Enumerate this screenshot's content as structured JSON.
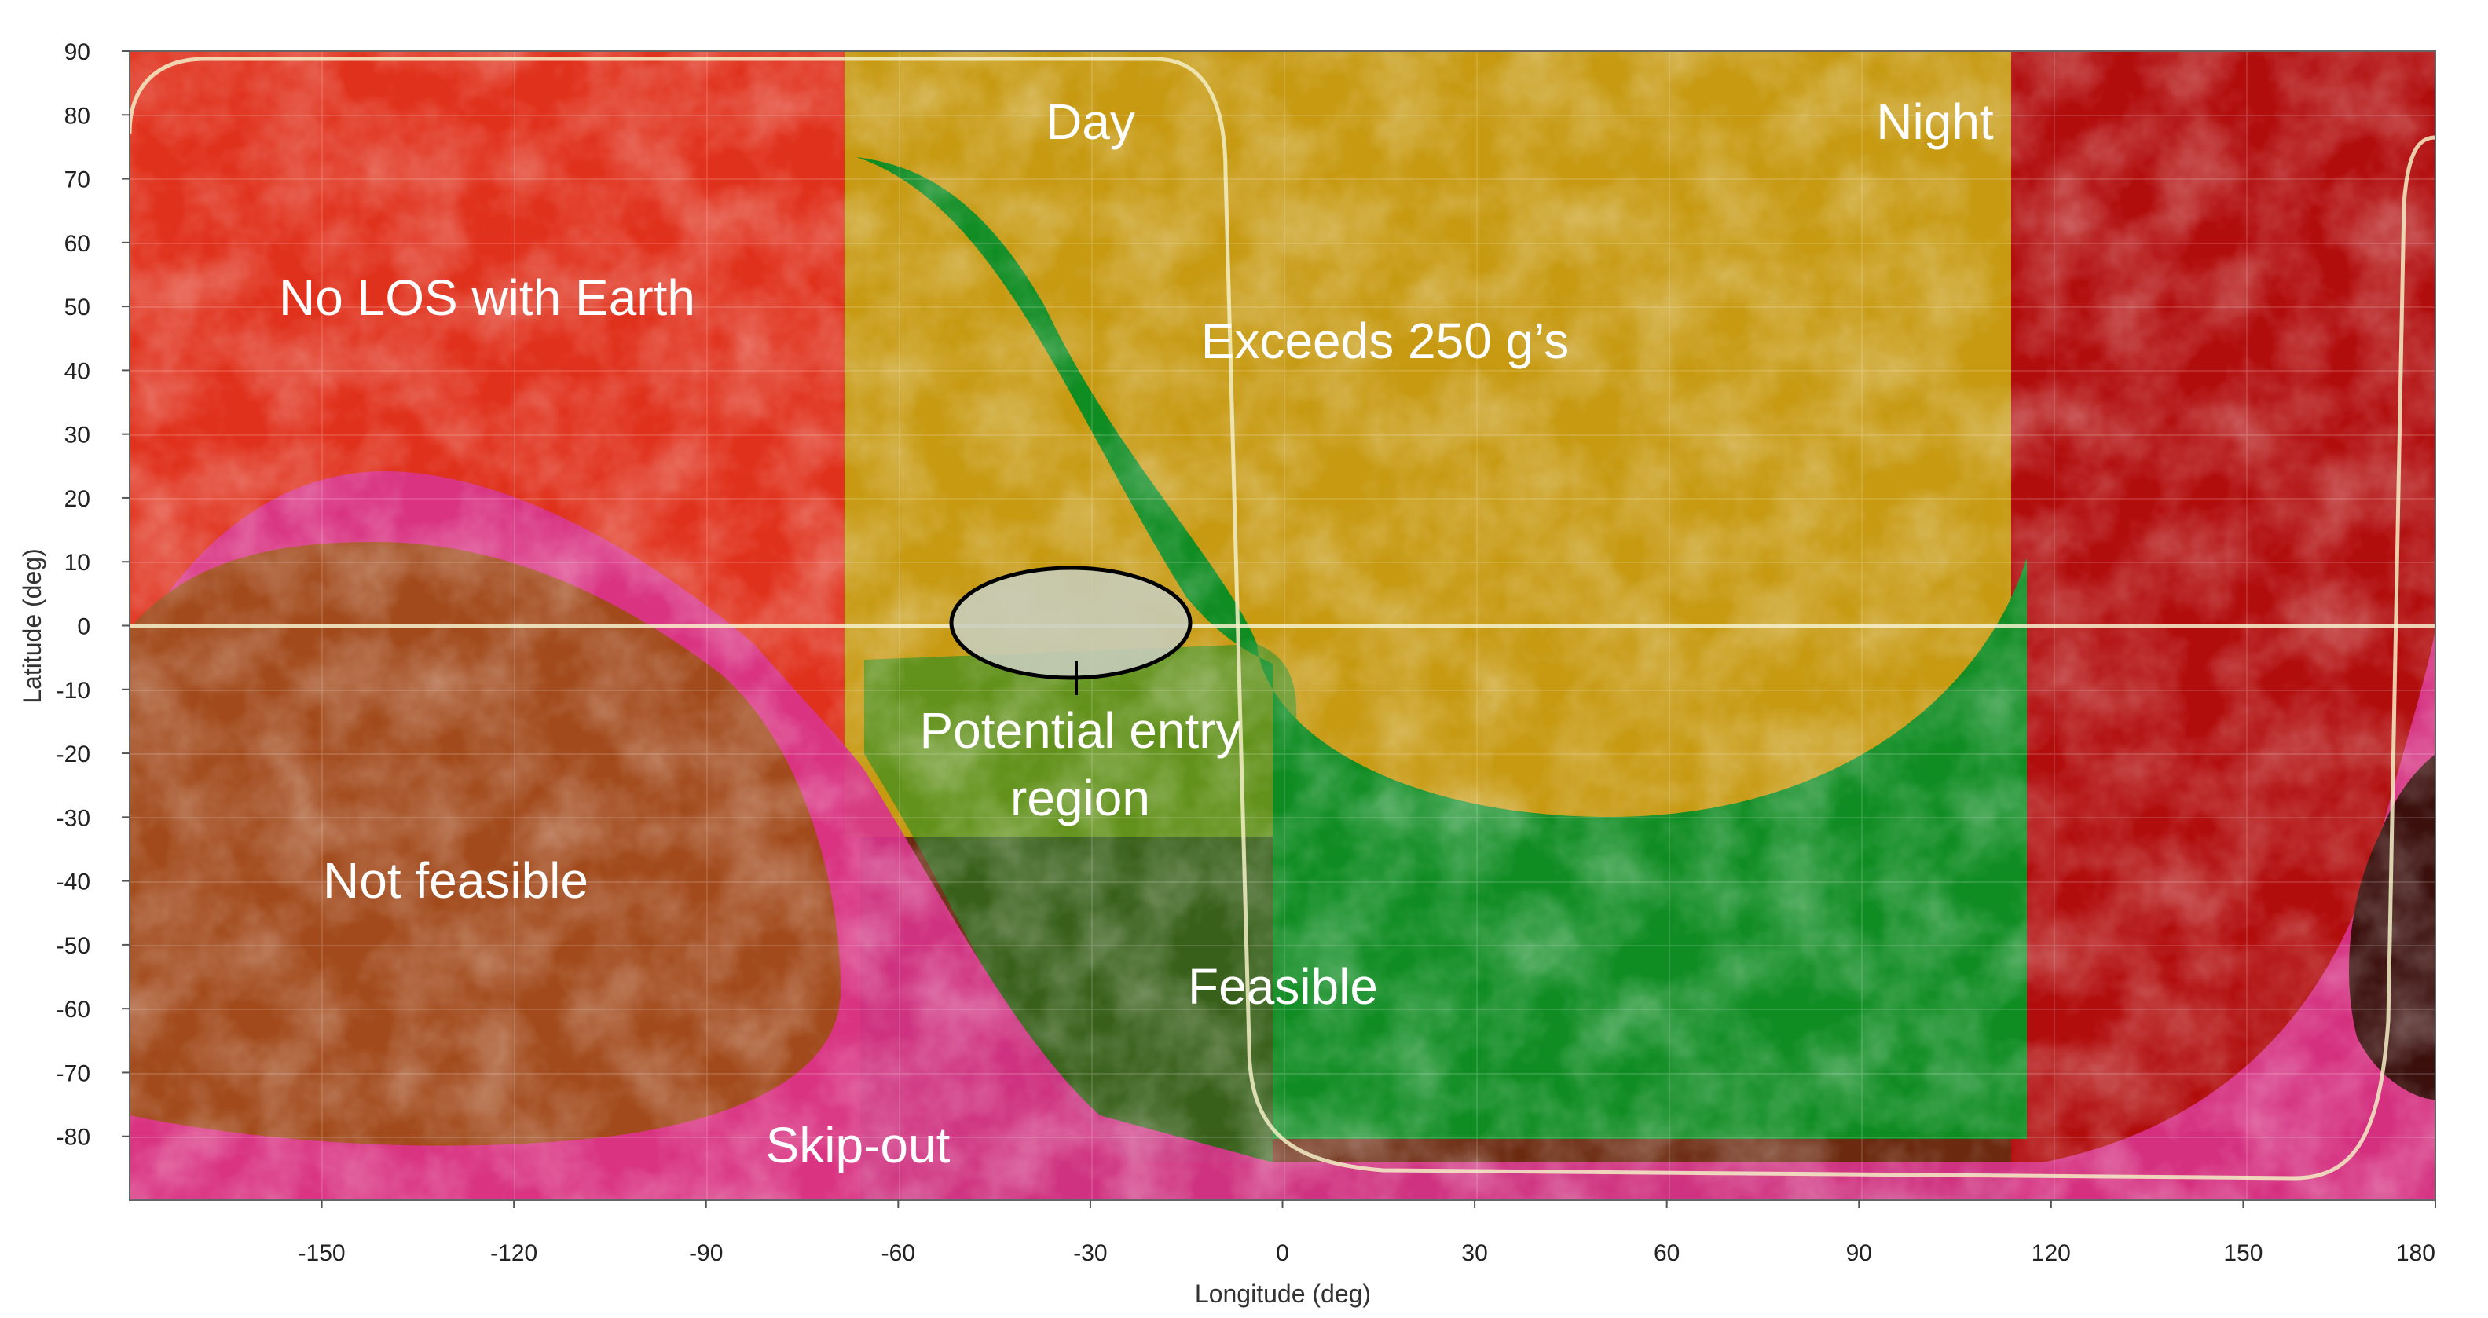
{
  "map": {
    "xaxis": {
      "label": "Longitude (deg)",
      "range": [
        -180,
        180
      ],
      "ticks": [
        -150,
        -120,
        -90,
        -60,
        -30,
        0,
        30,
        60,
        90,
        120,
        150,
        180
      ]
    },
    "yaxis": {
      "label": "Latitude (deg)",
      "range": [
        -90,
        90
      ],
      "ticks": [
        90,
        80,
        70,
        60,
        50,
        40,
        30,
        20,
        10,
        0,
        -10,
        -20,
        -30,
        -40,
        -50,
        -60,
        -70,
        -80
      ]
    },
    "grid": true,
    "regions": {
      "day": "Day",
      "night": "Night",
      "no_los": "No LOS with Earth",
      "exceeds": "Exceeds 250 g’s",
      "potential_line1": "Potential entry",
      "potential_line2": "region",
      "not_feasible": "Not feasible",
      "feasible": "Feasible",
      "skip_out": "Skip-out"
    },
    "colors": {
      "no_los": "#e0311c",
      "night": "#b20d0d",
      "exceeds": "#c79a12",
      "feasible": "#0f8c22",
      "skip_out": "#d8338a",
      "not_feasible": "#a24a1c",
      "entry_ellipse": "#c7cdbd"
    }
  }
}
